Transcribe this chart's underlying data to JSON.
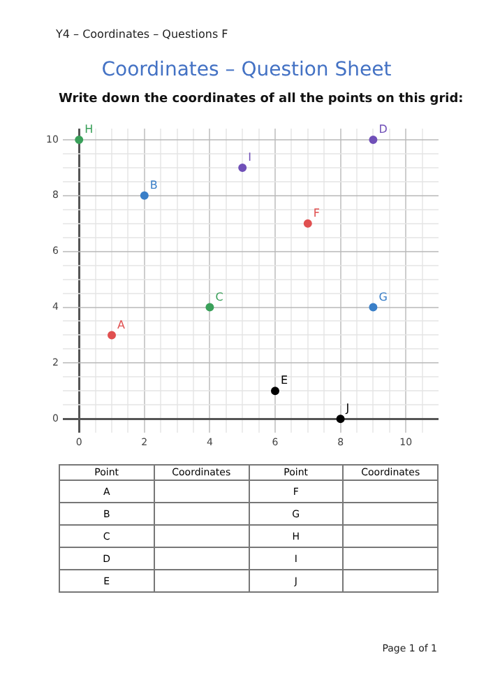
{
  "chart_data": {
    "type": "scatter",
    "title": "Coordinates – Question Sheet",
    "subtitle": "Write down the coordinates of all the points on this grid:",
    "annotations": [
      "Y4 – Coordinates – Questions F",
      "Point",
      "Coordinates",
      "Point",
      "Coordinates",
      "A",
      "F",
      "B",
      "G",
      "C",
      "H",
      "D",
      "I",
      "E",
      "J",
      "Page 1 of 1"
    ],
    "series": [
      {
        "name": "A",
        "color": "#e05050",
        "x": [
          1
        ],
        "values": [
          3
        ]
      },
      {
        "name": "B",
        "color": "#3a7fc8",
        "x": [
          2
        ],
        "values": [
          8
        ]
      },
      {
        "name": "C",
        "color": "#3aa05a",
        "x": [
          4
        ],
        "values": [
          4
        ]
      },
      {
        "name": "D",
        "color": "#7050b8",
        "x": [
          9
        ],
        "values": [
          10
        ]
      },
      {
        "name": "E",
        "color": "#000000",
        "x": [
          6
        ],
        "values": [
          1
        ]
      },
      {
        "name": "F",
        "color": "#e05050",
        "x": [
          7
        ],
        "values": [
          7
        ]
      },
      {
        "name": "G",
        "color": "#3a7fc8",
        "x": [
          9
        ],
        "values": [
          4
        ]
      },
      {
        "name": "H",
        "color": "#3aa05a",
        "x": [
          0
        ],
        "values": [
          10
        ]
      },
      {
        "name": "I",
        "color": "#7050b8",
        "x": [
          5
        ],
        "values": [
          9
        ]
      },
      {
        "name": "J",
        "color": "#000000",
        "x": [
          8
        ],
        "values": [
          0
        ]
      }
    ],
    "xlim": [
      -0.5,
      11
    ],
    "ylim": [
      -0.5,
      10.4
    ],
    "xticks": [
      0,
      {
        "value": 0.5,
        "label": null
      },
      {
        "value": 1,
        "label": null
      },
      {
        "value": 1.5,
        "label": null
      },
      2,
      {
        "value": 2.5,
        "label": null
      },
      {
        "value": 3,
        "label": null
      },
      {
        "value": 3.5,
        "label": null
      },
      4,
      {
        "value": 4.5,
        "label": null
      },
      {
        "value": 5,
        "label": null
      },
      {
        "value": 5.5,
        "label": null
      },
      6,
      {
        "value": 6.5,
        "label": null
      },
      {
        "value": 7,
        "label": null
      },
      {
        "value": 7.5,
        "label": null
      },
      8,
      {
        "value": 8.5,
        "label": null
      },
      {
        "value": 9,
        "label": null
      },
      {
        "value": 9.5,
        "label": null
      },
      10,
      {
        "value": 10.5,
        "label": null
      }
    ],
    "yticks": [
      0,
      {
        "value": 0.5,
        "label": null
      },
      {
        "value": 1,
        "label": null
      },
      {
        "value": 1.5,
        "label": null
      },
      2,
      {
        "value": 2.5,
        "label": null
      },
      {
        "value": 3,
        "label": null
      },
      {
        "value": 3.5,
        "label": null
      },
      4,
      {
        "value": 4.5,
        "label": null
      },
      {
        "value": 5,
        "label": null
      },
      {
        "value": 5.5,
        "label": null
      },
      6,
      {
        "value": 6.5,
        "label": null
      },
      {
        "value": 7,
        "label": null
      },
      {
        "value": 7.5,
        "label": null
      },
      8,
      {
        "value": 8.5,
        "label": null
      },
      {
        "value": 9,
        "label": null
      },
      {
        "value": 9.5,
        "label": null
      },
      10
    ],
    "grid": true,
    "legend": false,
    "marker": "circle"
  }
}
